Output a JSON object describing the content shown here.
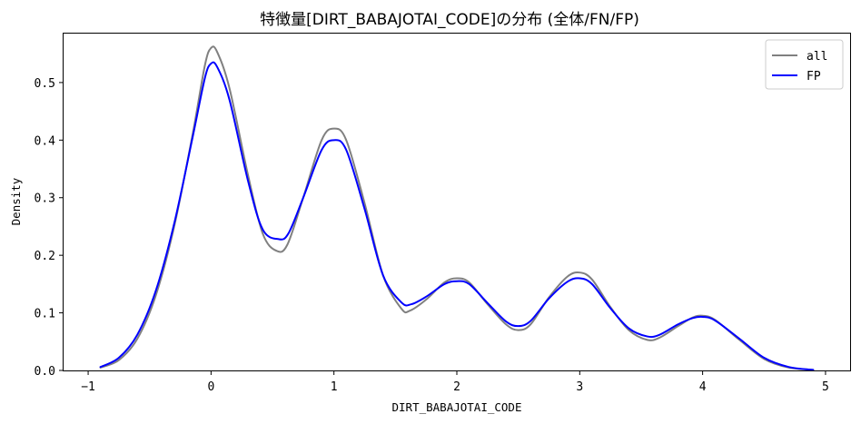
{
  "chart_data": {
    "type": "line",
    "title": "特徴量[DIRT_BABAJOTAI_CODE]の分布 (全体/FN/FP)",
    "xlabel": "DIRT_BABAJOTAI_CODE",
    "ylabel": "Density",
    "xlim": [
      -1.2,
      5.2
    ],
    "ylim": [
      0,
      0.585
    ],
    "xticks": [
      -1,
      0,
      1,
      2,
      3,
      4,
      5
    ],
    "xtick_labels": [
      "−1",
      "0",
      "1",
      "2",
      "3",
      "4",
      "5"
    ],
    "yticks": [
      0.0,
      0.1,
      0.2,
      0.3,
      0.4,
      0.5
    ],
    "ytick_labels": [
      "0.0",
      "0.1",
      "0.2",
      "0.3",
      "0.4",
      "0.5"
    ],
    "grid": false,
    "legend_position": "top-right",
    "series": [
      {
        "name": "all",
        "color": "#808080",
        "points": [
          [
            -0.9,
            0.005
          ],
          [
            -0.75,
            0.018
          ],
          [
            -0.6,
            0.055
          ],
          [
            -0.45,
            0.13
          ],
          [
            -0.3,
            0.25
          ],
          [
            -0.15,
            0.41
          ],
          [
            -0.05,
            0.53
          ],
          [
            0.0,
            0.56
          ],
          [
            0.05,
            0.553
          ],
          [
            0.15,
            0.49
          ],
          [
            0.3,
            0.34
          ],
          [
            0.42,
            0.238
          ],
          [
            0.53,
            0.208
          ],
          [
            0.62,
            0.218
          ],
          [
            0.75,
            0.3
          ],
          [
            0.9,
            0.4
          ],
          [
            1.0,
            0.42
          ],
          [
            1.1,
            0.4
          ],
          [
            1.25,
            0.29
          ],
          [
            1.4,
            0.165
          ],
          [
            1.55,
            0.107
          ],
          [
            1.62,
            0.104
          ],
          [
            1.75,
            0.123
          ],
          [
            1.9,
            0.153
          ],
          [
            2.0,
            0.16
          ],
          [
            2.1,
            0.153
          ],
          [
            2.25,
            0.115
          ],
          [
            2.4,
            0.08
          ],
          [
            2.5,
            0.07
          ],
          [
            2.6,
            0.08
          ],
          [
            2.75,
            0.127
          ],
          [
            2.9,
            0.163
          ],
          [
            3.0,
            0.17
          ],
          [
            3.1,
            0.158
          ],
          [
            3.25,
            0.11
          ],
          [
            3.4,
            0.07
          ],
          [
            3.55,
            0.053
          ],
          [
            3.65,
            0.057
          ],
          [
            3.8,
            0.077
          ],
          [
            3.92,
            0.092
          ],
          [
            4.0,
            0.095
          ],
          [
            4.1,
            0.088
          ],
          [
            4.3,
            0.053
          ],
          [
            4.5,
            0.02
          ],
          [
            4.7,
            0.005
          ],
          [
            4.9,
            0.001
          ]
        ]
      },
      {
        "name": "FP",
        "color": "#0000ff",
        "points": [
          [
            -0.9,
            0.006
          ],
          [
            -0.75,
            0.022
          ],
          [
            -0.6,
            0.062
          ],
          [
            -0.45,
            0.138
          ],
          [
            -0.3,
            0.255
          ],
          [
            -0.15,
            0.405
          ],
          [
            -0.05,
            0.508
          ],
          [
            0.0,
            0.533
          ],
          [
            0.05,
            0.527
          ],
          [
            0.15,
            0.47
          ],
          [
            0.3,
            0.33
          ],
          [
            0.42,
            0.245
          ],
          [
            0.55,
            0.228
          ],
          [
            0.63,
            0.238
          ],
          [
            0.75,
            0.3
          ],
          [
            0.9,
            0.383
          ],
          [
            1.0,
            0.4
          ],
          [
            1.1,
            0.383
          ],
          [
            1.25,
            0.28
          ],
          [
            1.4,
            0.165
          ],
          [
            1.55,
            0.118
          ],
          [
            1.63,
            0.115
          ],
          [
            1.75,
            0.128
          ],
          [
            1.9,
            0.15
          ],
          [
            2.0,
            0.155
          ],
          [
            2.1,
            0.15
          ],
          [
            2.25,
            0.117
          ],
          [
            2.4,
            0.085
          ],
          [
            2.5,
            0.077
          ],
          [
            2.6,
            0.086
          ],
          [
            2.75,
            0.125
          ],
          [
            2.9,
            0.154
          ],
          [
            3.0,
            0.16
          ],
          [
            3.1,
            0.15
          ],
          [
            3.25,
            0.108
          ],
          [
            3.4,
            0.073
          ],
          [
            3.55,
            0.059
          ],
          [
            3.65,
            0.062
          ],
          [
            3.8,
            0.08
          ],
          [
            3.92,
            0.091
          ],
          [
            4.0,
            0.093
          ],
          [
            4.1,
            0.087
          ],
          [
            4.3,
            0.055
          ],
          [
            4.5,
            0.022
          ],
          [
            4.7,
            0.006
          ],
          [
            4.9,
            0.001
          ]
        ]
      }
    ]
  }
}
